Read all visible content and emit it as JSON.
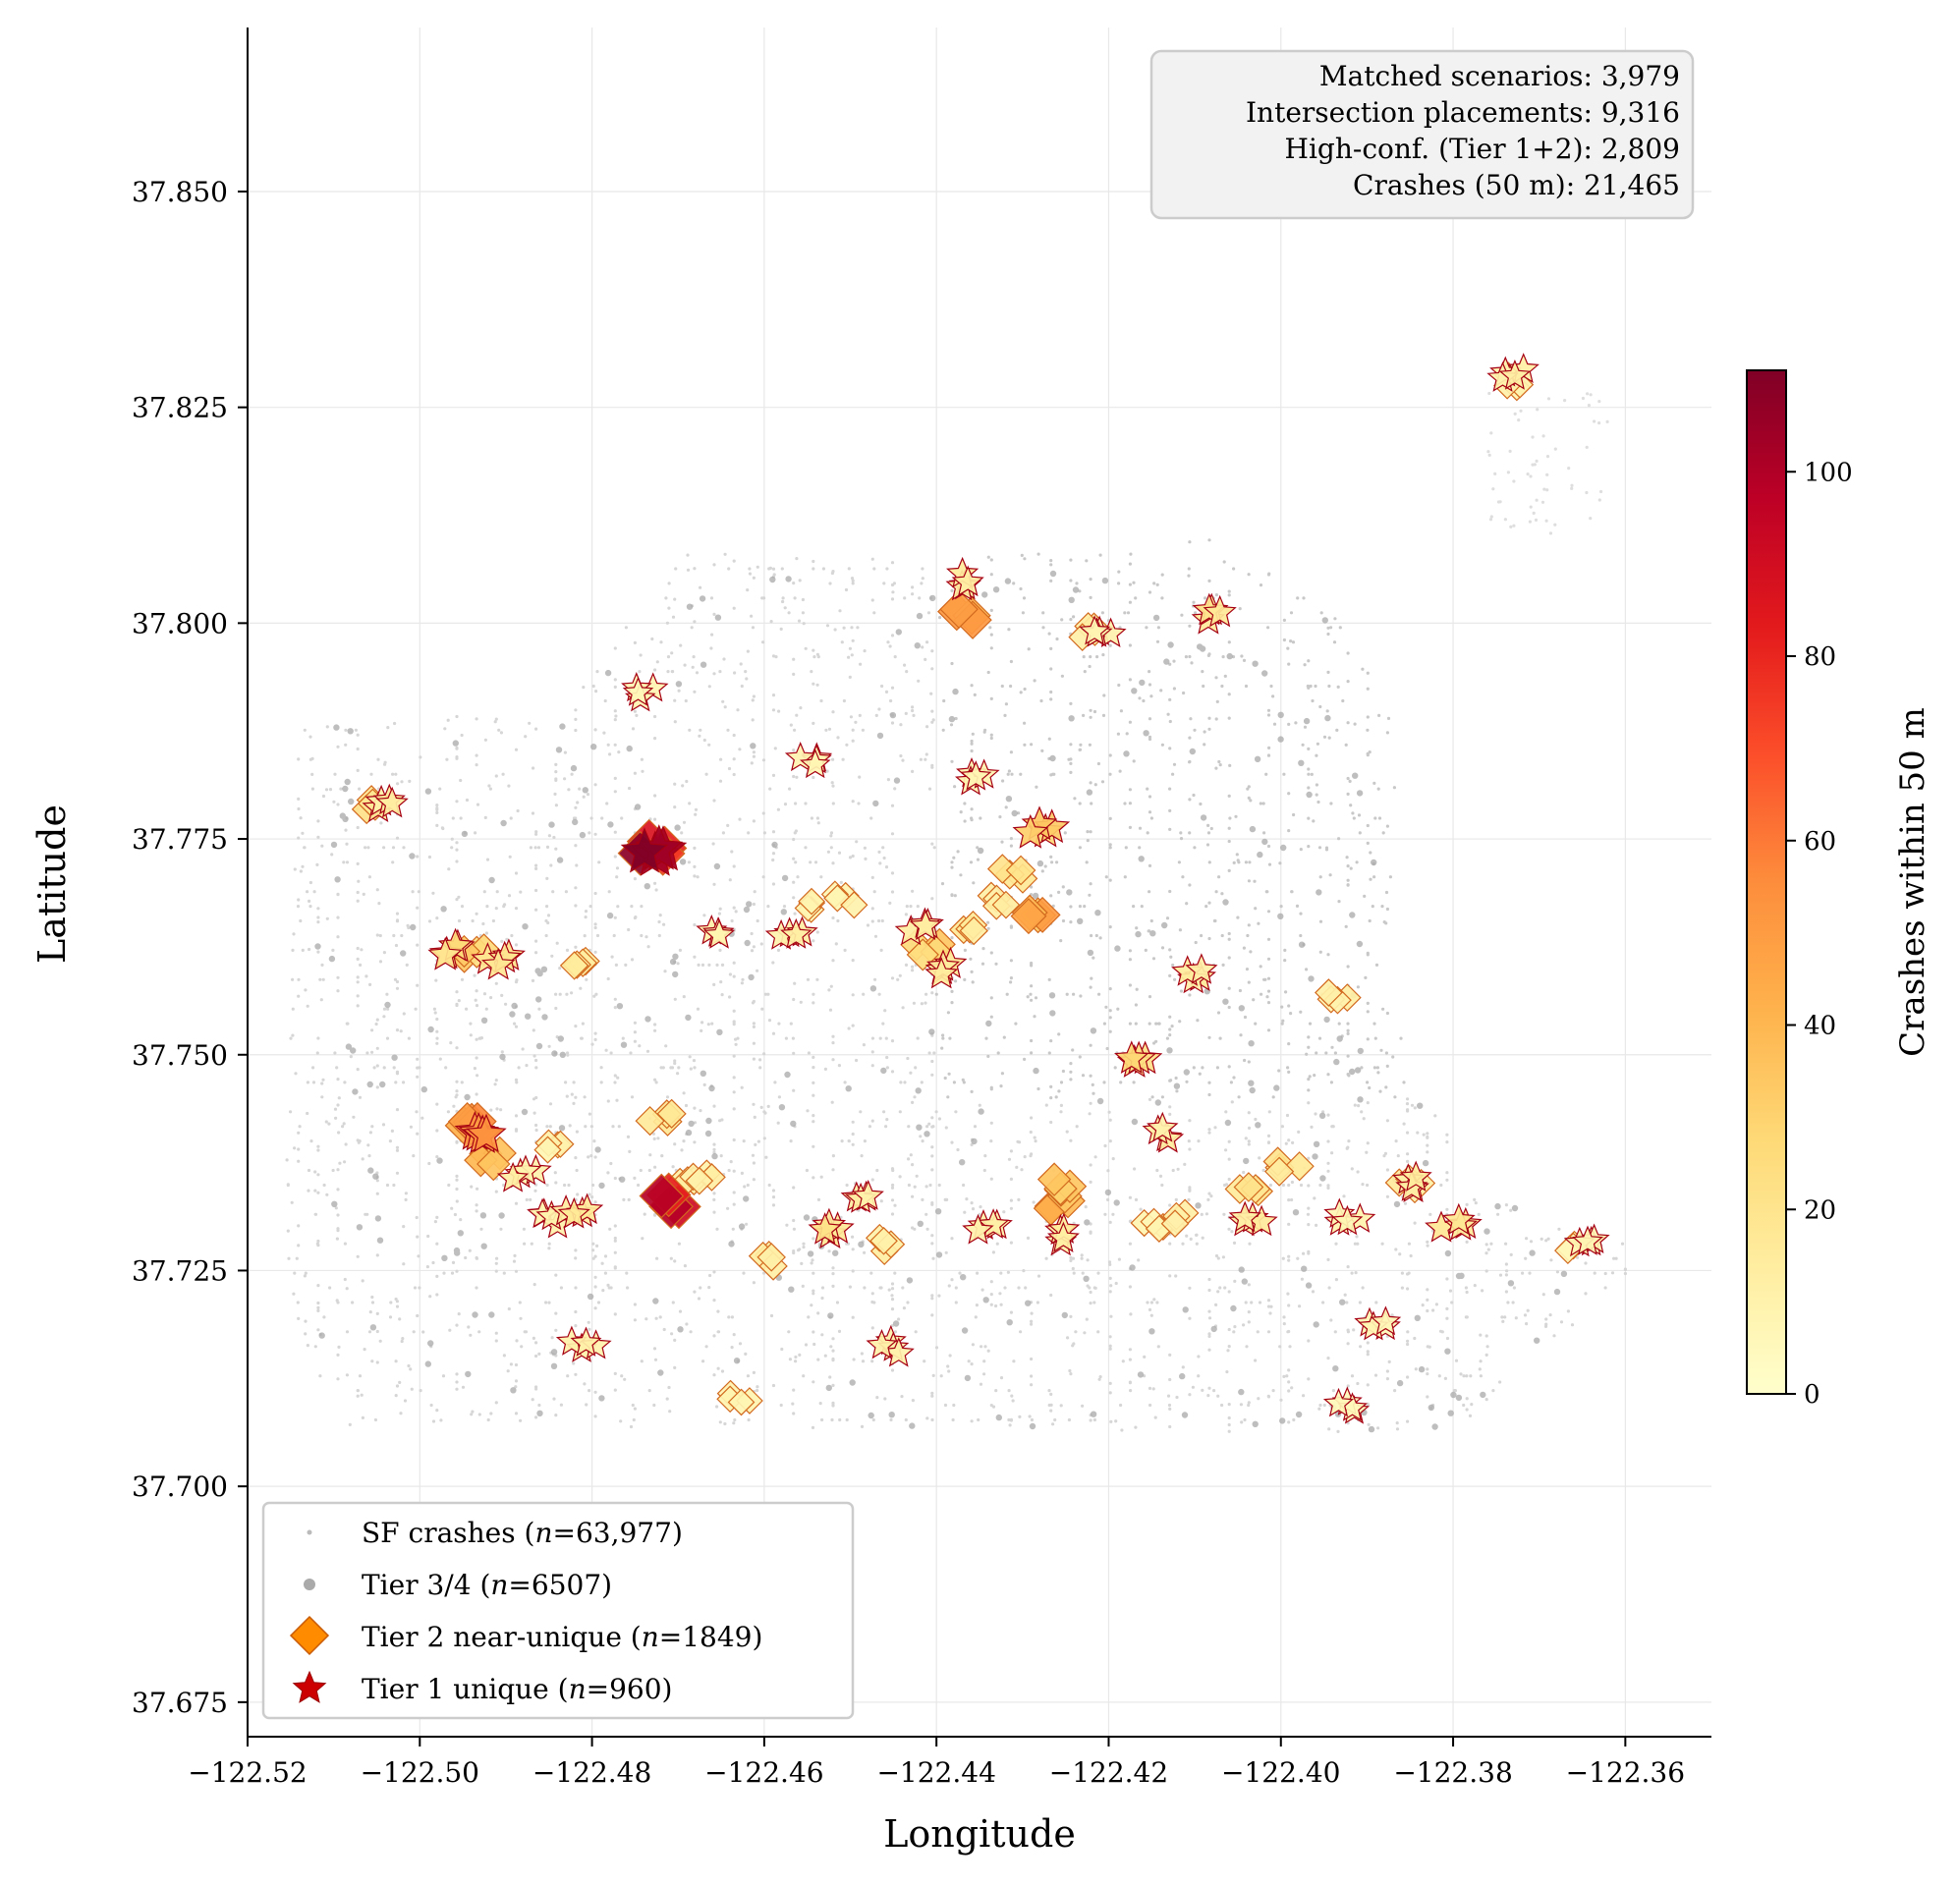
{
  "chart_data": {
    "type": "scatter",
    "xlabel": "Longitude",
    "ylabel": "Latitude",
    "xlim": [
      -122.52,
      -122.35
    ],
    "ylim": [
      37.671,
      37.869
    ],
    "xticks": [
      -122.52,
      -122.5,
      -122.48,
      -122.46,
      -122.44,
      -122.42,
      -122.4,
      -122.38,
      -122.36
    ],
    "xtick_labels": [
      "−122.52",
      "−122.50",
      "−122.48",
      "−122.46",
      "−122.44",
      "−122.42",
      "−122.40",
      "−122.38",
      "−122.36"
    ],
    "yticks": [
      37.675,
      37.7,
      37.725,
      37.75,
      37.775,
      37.8,
      37.825,
      37.85
    ],
    "ytick_labels": [
      "37.675",
      "37.700",
      "37.725",
      "37.750",
      "37.775",
      "37.800",
      "37.825",
      "37.850"
    ],
    "grid": true,
    "stats_box": [
      "Matched scenarios: 3,979",
      "Intersection placements: 9,316",
      "High-conf. (Tier 1+2): 2,809",
      "Crashes (50 m): 21,465"
    ],
    "colorbar": {
      "label": "Crashes within 50 m",
      "min": 0,
      "max": 111,
      "ticks": [
        0,
        20,
        40,
        60,
        80,
        100
      ],
      "colormap": [
        "#ffffcc",
        "#ffeda0",
        "#fed976",
        "#feb24c",
        "#fd8d3c",
        "#fc4e2a",
        "#e31a1c",
        "#bd0026",
        "#800026"
      ]
    },
    "legend": {
      "position": "lower-left",
      "entries": [
        {
          "marker": "small-dot",
          "color": "#bbbbbb",
          "pre": "SF crashes (",
          "n": "63,977",
          "post": ")"
        },
        {
          "marker": "dot",
          "color": "#aaaaaa",
          "pre": "Tier 3/4 (",
          "n": "6507",
          "post": ")"
        },
        {
          "marker": "diamond",
          "color": "#ff8c00",
          "pre": "Tier 2 near-unique (",
          "n": "1849",
          "post": ")"
        },
        {
          "marker": "star",
          "color": "#cc0000",
          "pre": "Tier 1 unique (",
          "n": "960",
          "post": ")"
        }
      ]
    },
    "series": [
      {
        "name": "Tier 2 near-unique",
        "marker": "diamond",
        "points": [
          [
            -122.506,
            37.779,
            20
          ],
          [
            -122.494,
            37.762,
            30
          ],
          [
            -122.494,
            37.742,
            55
          ],
          [
            -122.492,
            37.738,
            35
          ],
          [
            -122.484,
            37.739,
            10
          ],
          [
            -122.482,
            37.761,
            15
          ],
          [
            -122.472,
            37.743,
            18
          ],
          [
            -122.469,
            37.735,
            14
          ],
          [
            -122.467,
            37.736,
            12
          ],
          [
            -122.471,
            37.733,
            90
          ],
          [
            -122.473,
            37.774,
            95
          ],
          [
            -122.463,
            37.71,
            8
          ],
          [
            -122.459,
            37.726,
            15
          ],
          [
            -122.455,
            37.767,
            8
          ],
          [
            -122.451,
            37.768,
            10
          ],
          [
            -122.446,
            37.728,
            12
          ],
          [
            -122.441,
            37.762,
            30
          ],
          [
            -122.437,
            37.801,
            55
          ],
          [
            -122.436,
            37.765,
            15
          ],
          [
            -122.433,
            37.768,
            12
          ],
          [
            -122.431,
            37.771,
            20
          ],
          [
            -122.429,
            37.766,
            45
          ],
          [
            -122.426,
            37.733,
            40
          ],
          [
            -122.425,
            37.735,
            35
          ],
          [
            -122.422,
            37.799,
            12
          ],
          [
            -122.415,
            37.73,
            10
          ],
          [
            -122.411,
            37.731,
            12
          ],
          [
            -122.404,
            37.734,
            20
          ],
          [
            -122.399,
            37.737,
            18
          ],
          [
            -122.393,
            37.757,
            12
          ],
          [
            -122.385,
            37.735,
            14
          ],
          [
            -122.373,
            37.828,
            10
          ],
          [
            -122.367,
            37.728,
            8
          ]
        ]
      },
      {
        "name": "Tier 1 unique",
        "marker": "star",
        "points": [
          [
            -122.504,
            37.779,
            15
          ],
          [
            -122.496,
            37.762,
            25
          ],
          [
            -122.491,
            37.761,
            20
          ],
          [
            -122.493,
            37.741,
            50
          ],
          [
            -122.488,
            37.736,
            12
          ],
          [
            -122.485,
            37.731,
            10
          ],
          [
            -122.482,
            37.732,
            15
          ],
          [
            -122.481,
            37.716,
            10
          ],
          [
            -122.474,
            37.792,
            8
          ],
          [
            -122.473,
            37.773,
            110
          ],
          [
            -122.466,
            37.764,
            10
          ],
          [
            -122.457,
            37.764,
            12
          ],
          [
            -122.455,
            37.784,
            8
          ],
          [
            -122.452,
            37.73,
            20
          ],
          [
            -122.449,
            37.733,
            12
          ],
          [
            -122.445,
            37.716,
            10
          ],
          [
            -122.442,
            37.765,
            14
          ],
          [
            -122.438,
            37.76,
            18
          ],
          [
            -122.436,
            37.805,
            15
          ],
          [
            -122.435,
            37.782,
            10
          ],
          [
            -122.434,
            37.73,
            12
          ],
          [
            -122.428,
            37.776,
            30
          ],
          [
            -122.425,
            37.729,
            14
          ],
          [
            -122.421,
            37.799,
            10
          ],
          [
            -122.416,
            37.749,
            25
          ],
          [
            -122.413,
            37.741,
            12
          ],
          [
            -122.41,
            37.759,
            15
          ],
          [
            -122.408,
            37.801,
            20
          ],
          [
            -122.403,
            37.731,
            15
          ],
          [
            -122.392,
            37.731,
            10
          ],
          [
            -122.389,
            37.719,
            8
          ],
          [
            -122.384,
            37.735,
            14
          ],
          [
            -122.38,
            37.73,
            18
          ],
          [
            -122.373,
            37.829,
            12
          ],
          [
            -122.365,
            37.728,
            10
          ],
          [
            -122.392,
            37.709,
            6
          ]
        ]
      }
    ]
  }
}
